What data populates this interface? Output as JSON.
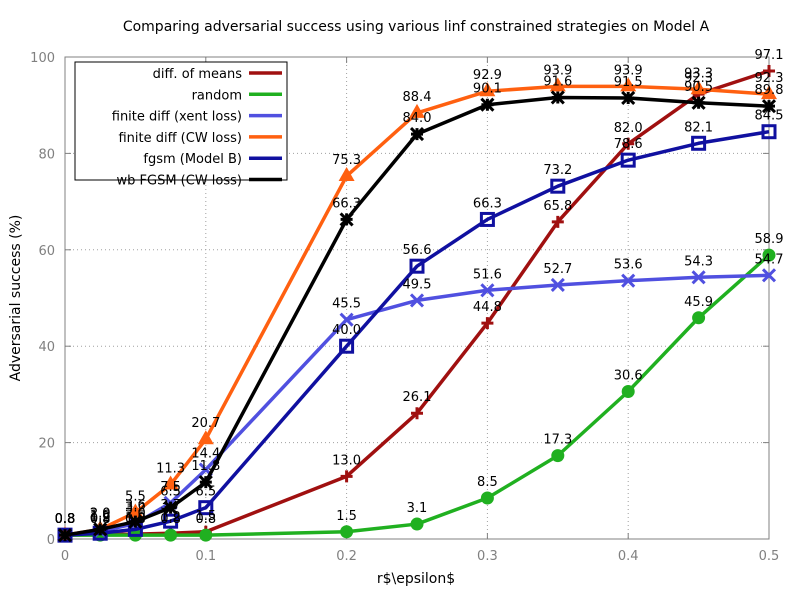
{
  "chart_data": {
    "type": "line",
    "title": "Comparing adversarial success using various linf constrained strategies on Model A",
    "xlabel": "r$\\epsilon$",
    "ylabel": "Adversarial success (%)",
    "xlim": [
      0,
      0.5
    ],
    "ylim": [
      0,
      100
    ],
    "xticks": [
      0,
      0.1,
      0.2,
      0.3,
      0.4,
      0.5
    ],
    "xtick_labels": [
      "0",
      "0.1",
      "0.2",
      "0.3",
      "0.4",
      "0.5"
    ],
    "yticks": [
      0,
      20,
      40,
      60,
      80,
      100
    ],
    "ytick_labels": [
      "0",
      "20",
      "40",
      "60",
      "80",
      "100"
    ],
    "grid": true,
    "legend_position": "top-left",
    "x": [
      0,
      0.025,
      0.05,
      0.075,
      0.1,
      0.2,
      0.25,
      0.3,
      0.35,
      0.4,
      0.45,
      0.5
    ],
    "series": [
      {
        "name": "diff. of means",
        "color": "#a01010",
        "marker": "plus",
        "x": [
          0,
          0.025,
          0.05,
          0.075,
          0.1,
          0.2,
          0.25,
          0.3,
          0.35,
          0.4,
          0.45,
          0.5
        ],
        "values": [
          0.8,
          0.9,
          1.0,
          1.2,
          1.5,
          13.0,
          26.1,
          44.8,
          65.8,
          82.0,
          92.3,
          97.1
        ]
      },
      {
        "name": "random",
        "color": "#20b020",
        "marker": "circle",
        "x": [
          0,
          0.025,
          0.05,
          0.075,
          0.1,
          0.2,
          0.25,
          0.3,
          0.35,
          0.4,
          0.45,
          0.5
        ],
        "values": [
          0.8,
          0.8,
          0.8,
          0.8,
          0.8,
          1.5,
          3.1,
          8.5,
          17.3,
          30.6,
          45.9,
          58.9
        ]
      },
      {
        "name": "finite diff (xent loss)",
        "color": "#5050e0",
        "marker": "x",
        "x": [
          0,
          0.025,
          0.05,
          0.075,
          0.1,
          0.2,
          0.25,
          0.3,
          0.35,
          0.4,
          0.45,
          0.5
        ],
        "values": [
          0.8,
          1.6,
          3.2,
          7.5,
          14.4,
          45.5,
          49.5,
          51.6,
          52.7,
          53.6,
          54.3,
          54.7
        ]
      },
      {
        "name": "finite diff (CW loss)",
        "color": "#ff6010",
        "marker": "triangle",
        "x": [
          0,
          0.025,
          0.05,
          0.075,
          0.1,
          0.2,
          0.25,
          0.3,
          0.35,
          0.4,
          0.45,
          0.5
        ],
        "values": [
          0.8,
          2.0,
          5.5,
          11.3,
          20.7,
          75.3,
          88.4,
          92.9,
          93.9,
          93.9,
          93.3,
          92.3
        ]
      },
      {
        "name": "fgsm (Model B)",
        "color": "#1010a0",
        "marker": "square",
        "x": [
          0,
          0.025,
          0.05,
          0.075,
          0.1,
          0.2,
          0.25,
          0.3,
          0.35,
          0.4,
          0.45,
          0.5
        ],
        "values": [
          0.8,
          1.2,
          2.0,
          3.7,
          6.5,
          40.0,
          56.6,
          66.3,
          73.2,
          78.6,
          82.1,
          84.5
        ]
      },
      {
        "name": "wb FGSM (CW loss)",
        "color": "#000000",
        "marker": "star",
        "x": [
          0,
          0.025,
          0.05,
          0.075,
          0.1,
          0.2,
          0.25,
          0.3,
          0.35,
          0.4,
          0.45,
          0.5
        ],
        "values": [
          0.8,
          2.0,
          3.6,
          6.5,
          11.8,
          66.3,
          84.0,
          90.1,
          91.6,
          91.5,
          90.5,
          89.8
        ]
      }
    ]
  }
}
